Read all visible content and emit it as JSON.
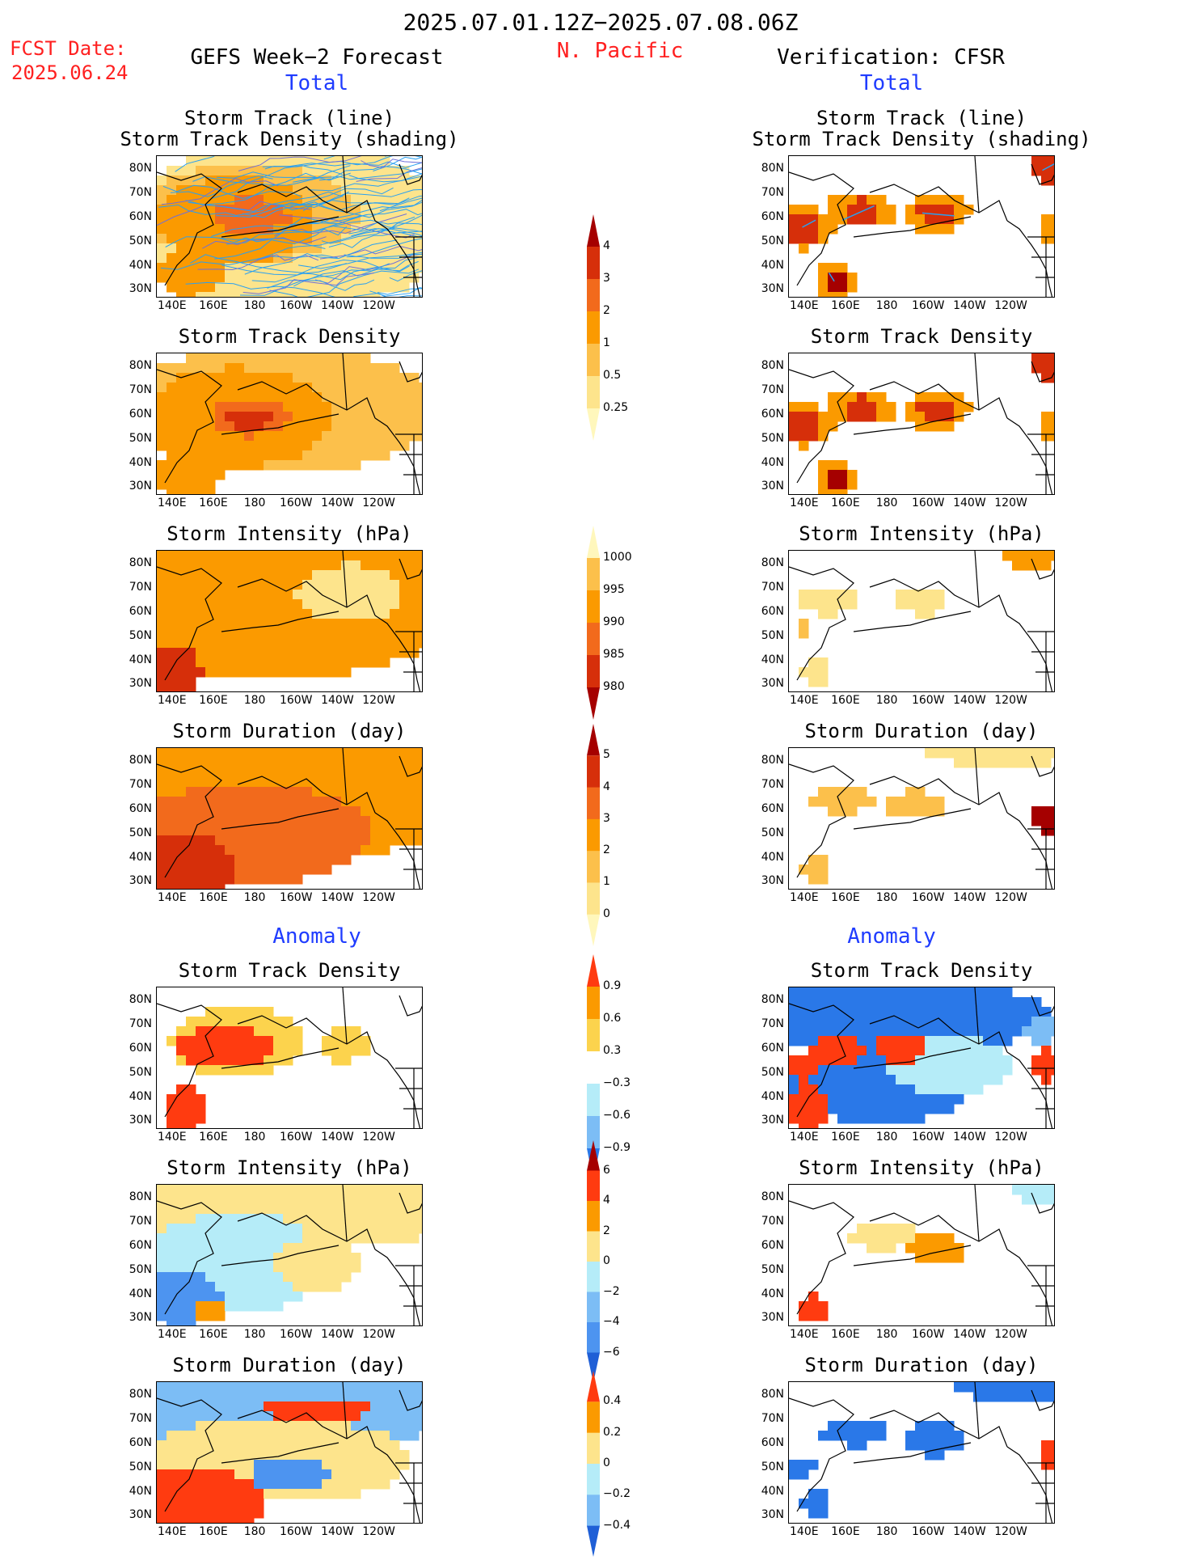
{
  "header": {
    "date_range": "2025.07.01.12Z−2025.07.08.06Z",
    "region": "N. Pacific",
    "fcst_label": "FCST Date:",
    "fcst_date": "2025.06.24",
    "left_title": "GEFS Week−2 Forecast",
    "right_title": "Verification: CFSR",
    "total_label": "Total",
    "anomaly_label": "Anomaly"
  },
  "axes": {
    "lat_ticks": [
      "80N",
      "70N",
      "60N",
      "50N",
      "40N",
      "30N"
    ],
    "lon_ticks": [
      "140E",
      "160E",
      "180",
      "160W",
      "140W",
      "120W"
    ]
  },
  "panel_titles": {
    "track_line": "Storm Track (line)",
    "track_shading": "Storm Track Density (shading)",
    "density": "Storm Track Density",
    "intensity": "Storm Intensity (hPa)",
    "duration": "Storm Duration (day)"
  },
  "colorbars": {
    "density": {
      "labels": [
        "4",
        "3",
        "2",
        "1",
        "0.5",
        "0.25"
      ],
      "colors": [
        "#a50000",
        "#d62f0a",
        "#f26a1c",
        "#fb9a00",
        "#fcc04b",
        "#fde48c",
        "#fff7bc"
      ]
    },
    "intensity": {
      "labels": [
        "1000",
        "995",
        "990",
        "985",
        "980"
      ],
      "colors": [
        "#fff7bc",
        "#fcc04b",
        "#fb9a00",
        "#f26a1c",
        "#d62f0a",
        "#a50000"
      ]
    },
    "duration": {
      "labels": [
        "5",
        "4",
        "3",
        "2",
        "1",
        "0"
      ],
      "colors": [
        "#a50000",
        "#d62f0a",
        "#f26a1c",
        "#fb9a00",
        "#fcc04b",
        "#fde48c",
        "#fff7bc"
      ]
    },
    "anom_density": {
      "labels": [
        "0.9",
        "0.6",
        "0.3",
        "−0.3",
        "−0.6",
        "−0.9"
      ],
      "colors": [
        "#ff3b10",
        "#fb9a00",
        "#fcd34d",
        "#ffffff",
        "#b5ecf8",
        "#7cbdf5",
        "#2a78e8"
      ]
    },
    "anom_intensity": {
      "labels": [
        "6",
        "4",
        "2",
        "0",
        "−2",
        "−4",
        "−6"
      ],
      "colors": [
        "#a50000",
        "#ff3b10",
        "#fb9a00",
        "#fde48c",
        "#b5ecf8",
        "#7cbdf5",
        "#4d94f0",
        "#1f5fd6"
      ]
    },
    "anom_duration": {
      "labels": [
        "0.4",
        "0.2",
        "0",
        "−0.2",
        "−0.4"
      ],
      "colors": [
        "#ff3b10",
        "#fb9a00",
        "#fde48c",
        "#b5ecf8",
        "#7cbdf5",
        "#1f5fd6"
      ]
    }
  },
  "chart_data": [
    {
      "type": "heatmap",
      "panel": "forecast-total-track",
      "title": "Storm Track (line) / Storm Track Density (shading)"
    },
    {
      "type": "heatmap",
      "panel": "forecast-total-density",
      "title": "Storm Track Density"
    },
    {
      "type": "heatmap",
      "panel": "forecast-total-intensity",
      "title": "Storm Intensity (hPa)"
    },
    {
      "type": "heatmap",
      "panel": "forecast-total-duration",
      "title": "Storm Duration (day)"
    },
    {
      "type": "heatmap",
      "panel": "forecast-anom-density",
      "title": "Storm Track Density"
    },
    {
      "type": "heatmap",
      "panel": "forecast-anom-intensity",
      "title": "Storm Intensity (hPa)"
    },
    {
      "type": "heatmap",
      "panel": "forecast-anom-duration",
      "title": "Storm Duration (day)"
    },
    {
      "type": "heatmap",
      "panel": "verif-total-track",
      "title": "Storm Track (line) / Storm Track Density (shading)"
    },
    {
      "type": "heatmap",
      "panel": "verif-total-density",
      "title": "Storm Track Density"
    },
    {
      "type": "heatmap",
      "panel": "verif-total-intensity",
      "title": "Storm Intensity (hPa)"
    },
    {
      "type": "heatmap",
      "panel": "verif-total-duration",
      "title": "Storm Duration (day)"
    },
    {
      "type": "heatmap",
      "panel": "verif-anom-density",
      "title": "Storm Track Density"
    },
    {
      "type": "heatmap",
      "panel": "verif-anom-intensity",
      "title": "Storm Intensity (hPa)"
    },
    {
      "type": "heatmap",
      "panel": "verif-anom-duration",
      "title": "Storm Duration (day)"
    }
  ]
}
